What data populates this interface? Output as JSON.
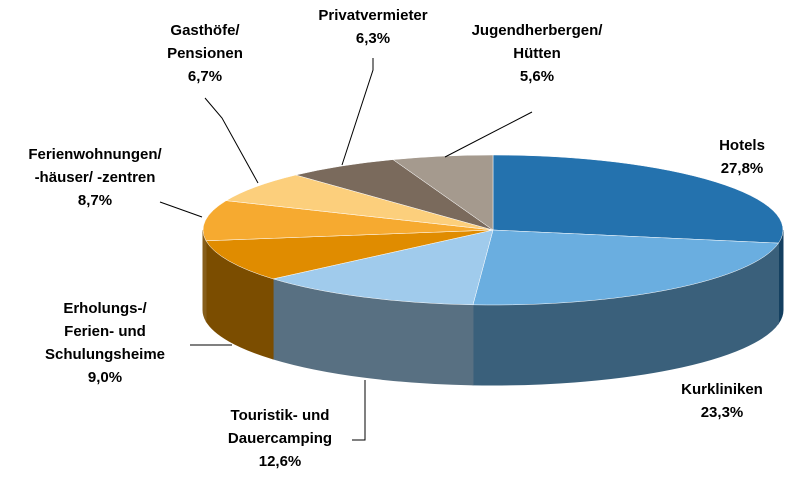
{
  "chart_data": {
    "type": "pie3d",
    "categories": [
      "Hotels",
      "Kurkliniken",
      "Touristik- und\nDauercamping",
      "Erholungs-/\nFerien- und\nSchulungsheime",
      "Ferienwohnungen/\n-häuser/ -zentren",
      "Gasthöfe/\nPensionen",
      "Privatvermieter",
      "Jugendherbergen/\nHütten"
    ],
    "values": [
      27.8,
      23.3,
      12.6,
      9.0,
      8.7,
      6.7,
      6.3,
      5.6
    ],
    "value_labels": [
      "27,8%",
      "23,3%",
      "12,6%",
      "9,0%",
      "8,7%",
      "6,7%",
      "6,3%",
      "5,6%"
    ],
    "colors": [
      "#2472ae",
      "#6aaee0",
      "#a0cbec",
      "#e08c00",
      "#f6aa30",
      "#fccf7c",
      "#7a6a5c",
      "#a59a8e"
    ]
  }
}
